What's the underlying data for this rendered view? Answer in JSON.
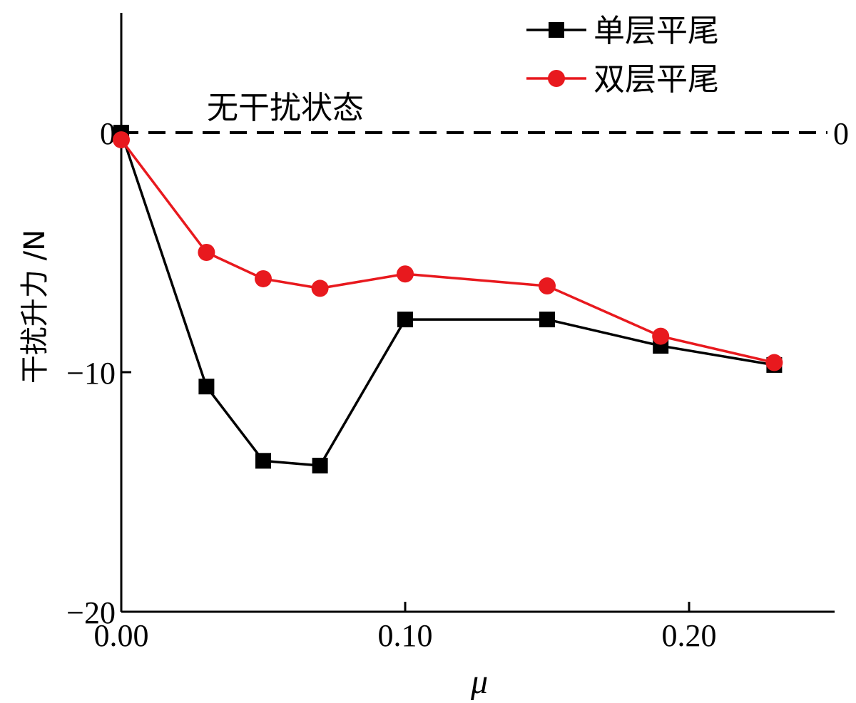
{
  "chart_data": {
    "type": "line",
    "title": "",
    "xlabel": "μ",
    "ylabel": "干扰升力 /N",
    "xlim": [
      0,
      0.25
    ],
    "ylim": [
      -20,
      5
    ],
    "x_ticks": [
      0.0,
      0.1,
      0.2
    ],
    "x_tick_labels": [
      "0.00",
      "0.10",
      "0.20"
    ],
    "y_ticks": [
      0,
      -10,
      -20
    ],
    "y_tick_labels": [
      "0",
      "−10",
      "−20"
    ],
    "grid": false,
    "legend_position": "top-right",
    "series": [
      {
        "name": "单层平尾",
        "color": "#000000",
        "marker": "square",
        "x": [
          0.0,
          0.03,
          0.05,
          0.07,
          0.1,
          0.15,
          0.19,
          0.23
        ],
        "y": [
          0.0,
          -10.6,
          -13.7,
          -13.9,
          -7.8,
          -7.8,
          -8.9,
          -9.7
        ]
      },
      {
        "name": "双层平尾",
        "color": "#e8191e",
        "marker": "circle",
        "x": [
          0.0,
          0.03,
          0.05,
          0.07,
          0.1,
          0.15,
          0.19,
          0.23
        ],
        "y": [
          -0.3,
          -5.0,
          -6.1,
          -6.5,
          -5.9,
          -6.4,
          -8.5,
          -9.6
        ]
      }
    ],
    "reference_line": {
      "y": 0,
      "style": "dashed",
      "label": "无干扰状态",
      "right_label": "0"
    }
  }
}
